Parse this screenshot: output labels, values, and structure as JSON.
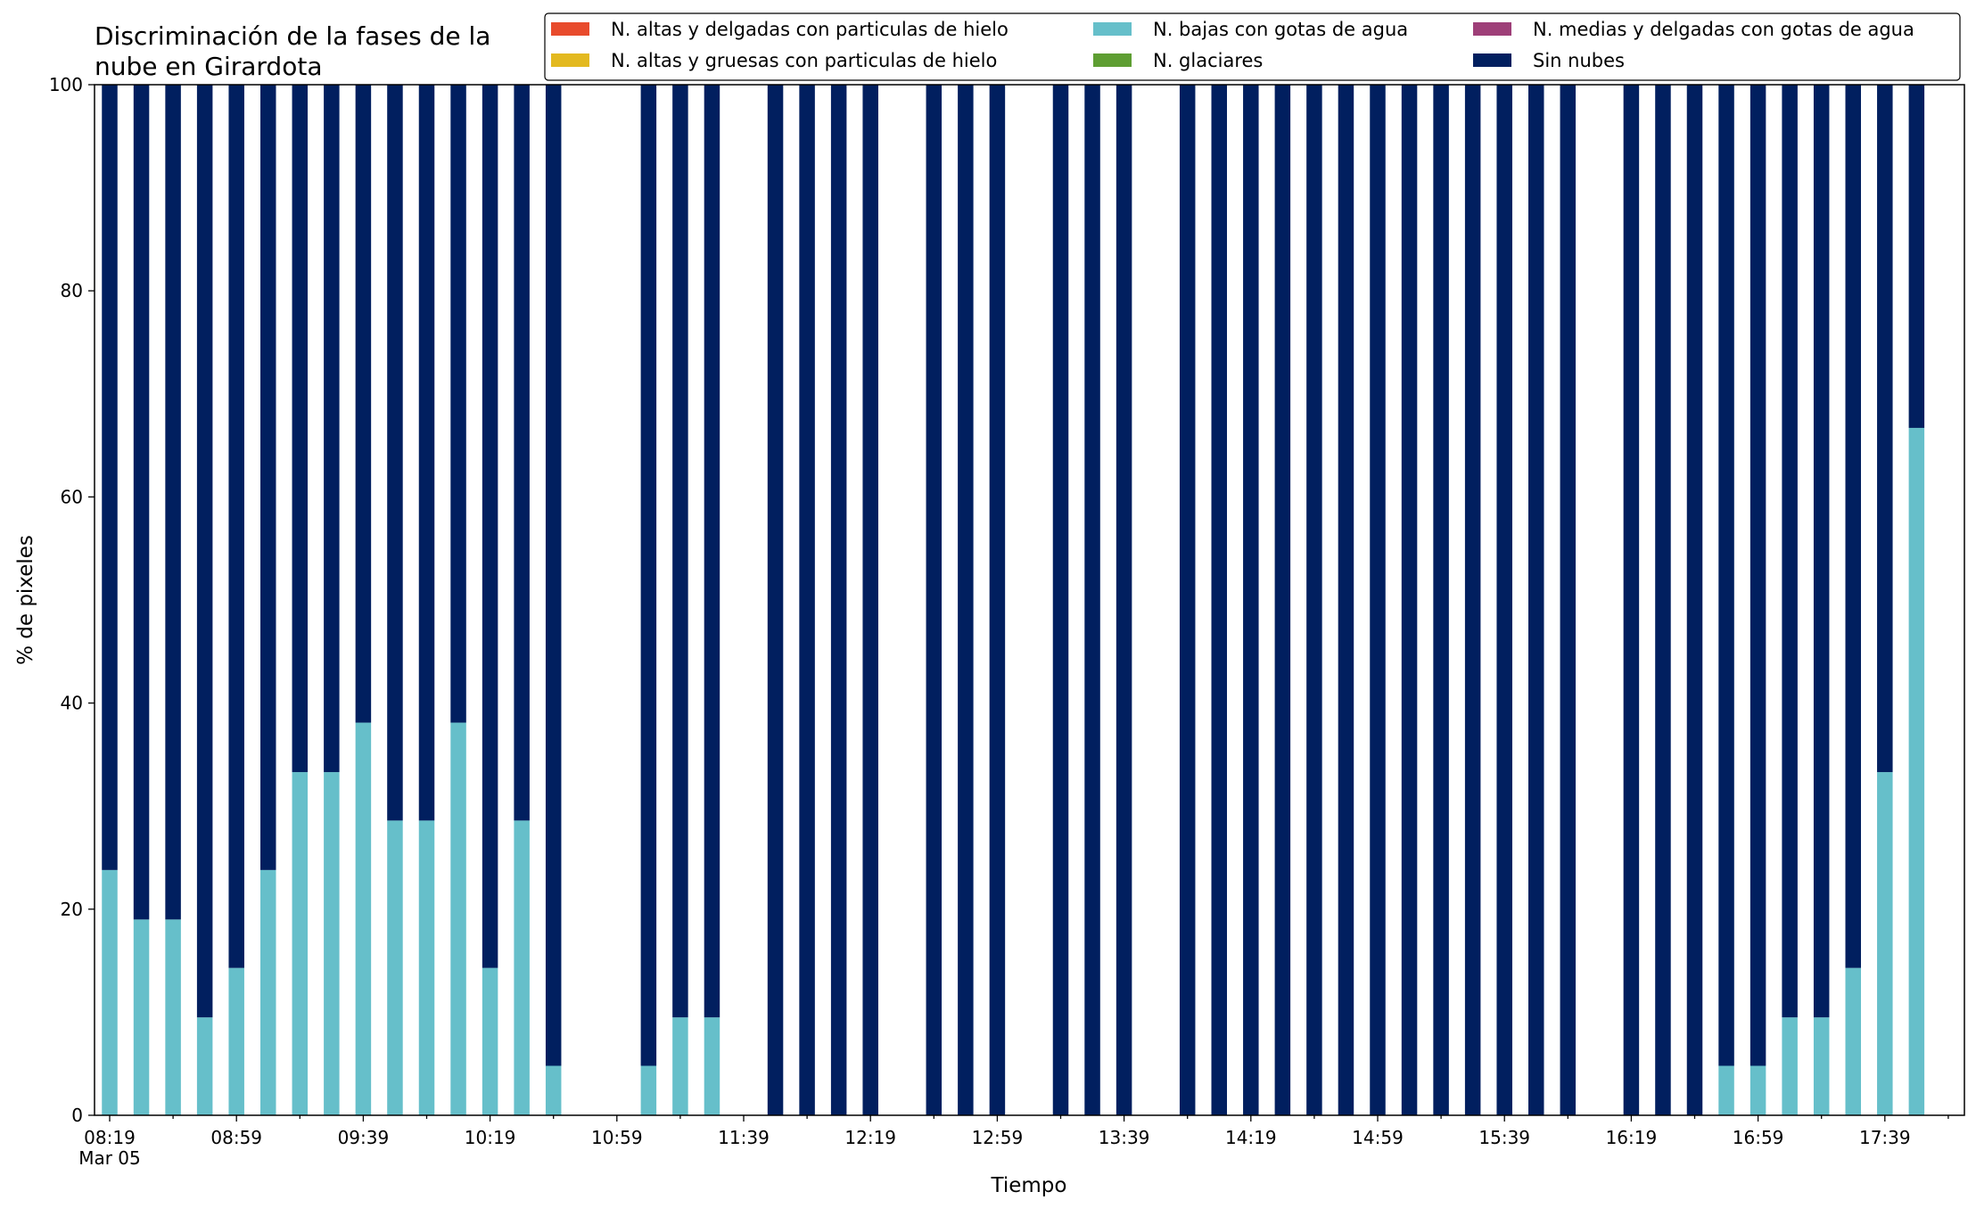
{
  "chart_data": {
    "type": "bar",
    "stacked": true,
    "title_lines": [
      "Discriminación de la fases de la",
      "nube en Girardota"
    ],
    "xlabel": "Tiempo",
    "ylabel": "% de pixeles",
    "ylim": [
      0,
      100
    ],
    "yticks": [
      0,
      20,
      40,
      60,
      80,
      100
    ],
    "grid": false,
    "legend_position": "top-right",
    "x_start": "08:19",
    "x_step_minutes": 10,
    "x_count": 59,
    "xtick_labels": [
      "08:19",
      "08:59",
      "09:39",
      "10:19",
      "10:59",
      "11:39",
      "12:19",
      "12:59",
      "13:39",
      "14:19",
      "14:59",
      "15:39",
      "16:19",
      "16:59",
      "17:39"
    ],
    "xtick_sublabel": "Mar 05",
    "series": [
      {
        "name": "N. altas y delgadas con particulas de hielo",
        "color": "#e84b2c",
        "values": []
      },
      {
        "name": "N. altas y gruesas con particulas de hielo",
        "color": "#e3b91f",
        "values": []
      },
      {
        "name": "N. bajas con gotas de agua",
        "color": "#66bfca",
        "values": [
          23.8,
          19.0,
          19.0,
          9.5,
          14.3,
          23.8,
          33.3,
          33.3,
          38.1,
          28.6,
          28.6,
          38.1,
          14.3,
          28.6,
          4.8,
          null,
          null,
          4.8,
          9.5,
          9.5,
          null,
          0,
          0,
          0,
          0,
          null,
          0,
          0,
          0,
          null,
          0,
          0,
          0,
          null,
          0,
          0,
          0,
          0,
          0,
          0,
          0,
          0,
          0,
          0,
          0,
          0,
          0,
          null,
          0,
          0,
          0,
          4.8,
          4.8,
          9.5,
          9.5,
          14.3,
          33.3,
          66.7,
          null
        ]
      },
      {
        "name": "N. glaciares",
        "color": "#5e9e32",
        "values": []
      },
      {
        "name": "N. medias y delgadas con gotas de agua",
        "color": "#9e3f78",
        "values": []
      },
      {
        "name": "Sin nubes",
        "color": "#011f5f",
        "values": [
          76.2,
          81.0,
          81.0,
          90.5,
          85.7,
          76.2,
          66.7,
          66.7,
          61.9,
          71.4,
          71.4,
          61.9,
          85.7,
          71.4,
          95.2,
          null,
          null,
          95.2,
          90.5,
          90.5,
          null,
          100,
          100,
          100,
          100,
          null,
          100,
          100,
          100,
          null,
          100,
          100,
          100,
          null,
          100,
          100,
          100,
          100,
          100,
          100,
          100,
          100,
          100,
          100,
          100,
          100,
          100,
          null,
          100,
          100,
          100,
          95.2,
          95.2,
          90.5,
          90.5,
          85.7,
          66.7,
          33.3,
          null
        ]
      }
    ]
  }
}
